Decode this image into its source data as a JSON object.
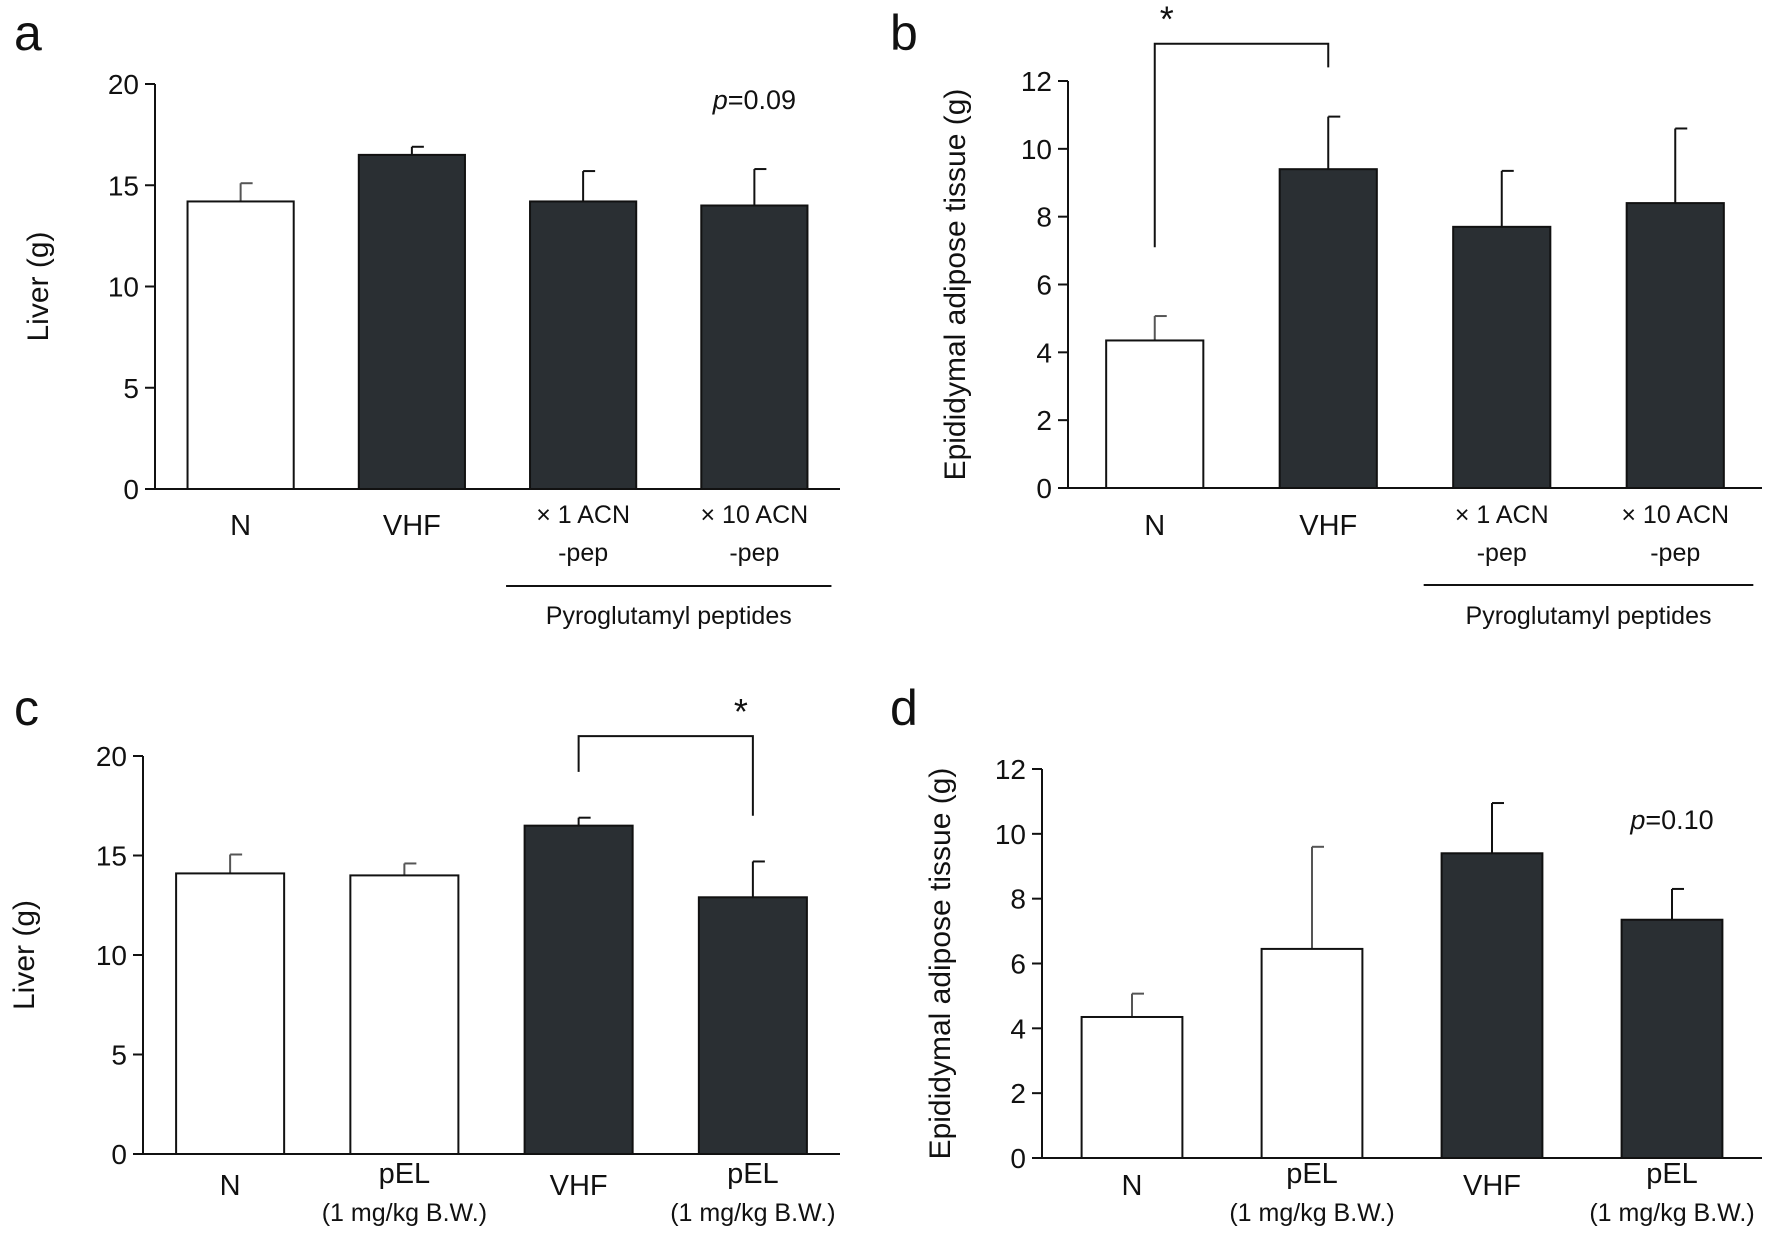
{
  "figure": {
    "colors": {
      "open_bar": "#ffffff",
      "filled_bar": "#2a2f33",
      "ink": "#111111"
    },
    "panels": [
      {
        "id": "a",
        "letter": "a",
        "chart_data": {
          "type": "bar",
          "ylabel": "Liver (g)",
          "ylim": [
            0,
            20
          ],
          "yticks": [
            0,
            5,
            10,
            15,
            20
          ],
          "categories": [
            {
              "lines": [
                "N"
              ]
            },
            {
              "lines": [
                "VHF"
              ]
            },
            {
              "lines": [
                "× 1 ACN",
                "-pep"
              ]
            },
            {
              "lines": [
                "× 10 ACN",
                "-pep"
              ]
            }
          ],
          "values": [
            14.2,
            16.5,
            14.2,
            14.0
          ],
          "errors": [
            0.9,
            0.4,
            1.5,
            1.8
          ],
          "fills": [
            "open",
            "filled",
            "filled",
            "filled"
          ],
          "group_label": {
            "text": "Pyroglutamyl peptides",
            "span": [
              2,
              3
            ]
          },
          "annotations": [
            {
              "prefix": "p",
              "text": "=0.09",
              "above": 3
            }
          ],
          "brackets": []
        }
      },
      {
        "id": "b",
        "letter": "b",
        "chart_data": {
          "type": "bar",
          "ylabel": "Epididymal adipose tissue (g)",
          "ylim": [
            0,
            12
          ],
          "yticks": [
            0,
            2,
            4,
            6,
            8,
            10,
            12
          ],
          "categories": [
            {
              "lines": [
                "N"
              ]
            },
            {
              "lines": [
                "VHF"
              ]
            },
            {
              "lines": [
                "× 1 ACN",
                "-pep"
              ]
            },
            {
              "lines": [
                "× 10 ACN",
                "-pep"
              ]
            }
          ],
          "values": [
            4.35,
            9.4,
            7.7,
            8.4
          ],
          "errors": [
            0.72,
            1.55,
            1.65,
            2.2
          ],
          "fills": [
            "open",
            "filled",
            "filled",
            "filled"
          ],
          "group_label": {
            "text": "Pyroglutamyl peptides",
            "span": [
              2,
              3
            ]
          },
          "annotations": [],
          "brackets": [
            {
              "from": 0,
              "to": 1,
              "label": "*",
              "top": 13.1,
              "left_end": 7.1,
              "right_end": 12.4
            }
          ]
        }
      },
      {
        "id": "c",
        "letter": "c",
        "chart_data": {
          "type": "bar",
          "ylabel": "Liver (g)",
          "ylim": [
            0,
            20
          ],
          "yticks": [
            0,
            5,
            10,
            15,
            20
          ],
          "categories": [
            {
              "lines": [
                "N"
              ]
            },
            {
              "lines": [
                "pEL",
                "(1 mg/kg B.W.)"
              ]
            },
            {
              "lines": [
                "VHF"
              ]
            },
            {
              "lines": [
                "pEL",
                "(1 mg/kg B.W.)"
              ]
            }
          ],
          "values": [
            14.1,
            14.0,
            16.5,
            12.9
          ],
          "errors": [
            0.95,
            0.6,
            0.4,
            1.8
          ],
          "fills": [
            "open",
            "open",
            "filled",
            "filled"
          ],
          "group_label": null,
          "annotations": [],
          "brackets": [
            {
              "from": 2,
              "to": 3,
              "label": "*",
              "top": 21.0,
              "left_end": 19.2,
              "right_end": 17.0
            }
          ]
        }
      },
      {
        "id": "d",
        "letter": "d",
        "chart_data": {
          "type": "bar",
          "ylabel": "Epididymal adipose tissue (g)",
          "ylim": [
            0,
            12
          ],
          "yticks": [
            0,
            2,
            4,
            6,
            8,
            10,
            12
          ],
          "categories": [
            {
              "lines": [
                "N"
              ]
            },
            {
              "lines": [
                "pEL",
                "(1 mg/kg B.W.)"
              ]
            },
            {
              "lines": [
                "VHF"
              ]
            },
            {
              "lines": [
                "pEL",
                "(1 mg/kg B.W.)"
              ]
            }
          ],
          "values": [
            4.35,
            6.45,
            9.4,
            7.35
          ],
          "errors": [
            0.72,
            3.15,
            1.55,
            0.95
          ],
          "fills": [
            "open",
            "open",
            "filled",
            "filled"
          ],
          "group_label": null,
          "annotations": [
            {
              "prefix": "p",
              "text": "=0.10",
              "above": 3
            }
          ],
          "brackets": []
        }
      }
    ]
  }
}
